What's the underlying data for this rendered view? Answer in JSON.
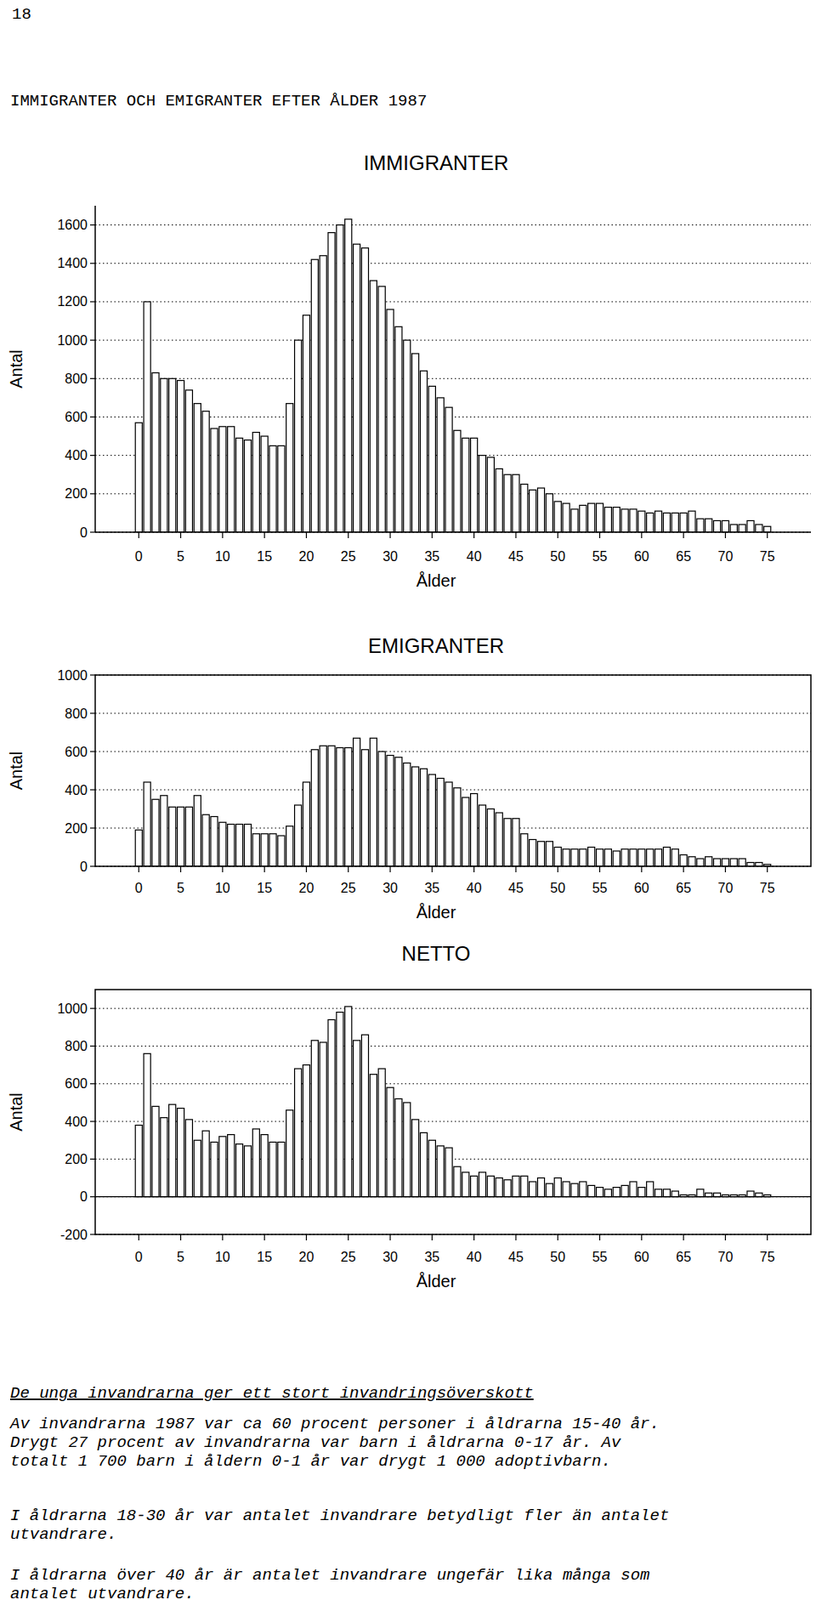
{
  "page_number": "18",
  "heading": "IMMIGRANTER OCH EMIGRANTER EFTER ÅLDER 1987",
  "chart_data": [
    {
      "type": "bar",
      "title": "IMMIGRANTER",
      "x_label": "Ålder",
      "y_label": "Antal",
      "color": "#ffffff",
      "grid": true,
      "x": [
        0,
        1,
        2,
        3,
        4,
        5,
        6,
        7,
        8,
        9,
        10,
        11,
        12,
        13,
        14,
        15,
        16,
        17,
        18,
        19,
        20,
        21,
        22,
        23,
        24,
        25,
        26,
        27,
        28,
        29,
        30,
        31,
        32,
        33,
        34,
        35,
        36,
        37,
        38,
        39,
        40,
        41,
        42,
        43,
        44,
        45,
        46,
        47,
        48,
        49,
        50,
        51,
        52,
        53,
        54,
        55,
        56,
        57,
        58,
        59,
        60,
        61,
        62,
        63,
        64,
        65,
        66,
        67,
        68,
        69,
        70,
        71,
        72,
        73,
        74,
        75
      ],
      "values": [
        570,
        1200,
        830,
        800,
        800,
        790,
        740,
        670,
        630,
        540,
        550,
        550,
        490,
        480,
        520,
        500,
        450,
        450,
        670,
        1000,
        1130,
        1420,
        1440,
        1560,
        1600,
        1630,
        1500,
        1480,
        1310,
        1280,
        1160,
        1070,
        1000,
        930,
        840,
        760,
        700,
        650,
        530,
        490,
        490,
        400,
        390,
        330,
        300,
        300,
        250,
        220,
        230,
        200,
        160,
        150,
        120,
        140,
        150,
        150,
        130,
        130,
        120,
        120,
        110,
        100,
        110,
        100,
        100,
        100,
        110,
        70,
        70,
        60,
        60,
        40,
        40,
        60,
        40,
        30
      ],
      "xlim": [
        -5.2,
        80.2
      ],
      "ylim": [
        0,
        1700
      ],
      "xticks": [
        0,
        5,
        10,
        15,
        20,
        25,
        30,
        35,
        40,
        45,
        50,
        55,
        60,
        65,
        70,
        75
      ],
      "yticks": [
        0,
        200,
        400,
        600,
        800,
        1000,
        1200,
        1400,
        1600
      ]
    },
    {
      "type": "bar",
      "title": "EMIGRANTER",
      "x_label": "Ålder",
      "y_label": "Antal",
      "color": "#ffffff",
      "grid": true,
      "x": [
        0,
        1,
        2,
        3,
        4,
        5,
        6,
        7,
        8,
        9,
        10,
        11,
        12,
        13,
        14,
        15,
        16,
        17,
        18,
        19,
        20,
        21,
        22,
        23,
        24,
        25,
        26,
        27,
        28,
        29,
        30,
        31,
        32,
        33,
        34,
        35,
        36,
        37,
        38,
        39,
        40,
        41,
        42,
        43,
        44,
        45,
        46,
        47,
        48,
        49,
        50,
        51,
        52,
        53,
        54,
        55,
        56,
        57,
        58,
        59,
        60,
        61,
        62,
        63,
        64,
        65,
        66,
        67,
        68,
        69,
        70,
        71,
        72,
        73,
        74,
        75
      ],
      "values": [
        190,
        440,
        350,
        370,
        310,
        310,
        310,
        370,
        270,
        260,
        230,
        220,
        220,
        220,
        170,
        170,
        170,
        160,
        210,
        320,
        440,
        610,
        630,
        630,
        620,
        620,
        670,
        610,
        670,
        600,
        580,
        570,
        540,
        520,
        510,
        480,
        460,
        440,
        410,
        360,
        380,
        320,
        300,
        280,
        250,
        250,
        170,
        140,
        130,
        130,
        100,
        90,
        90,
        90,
        100,
        90,
        90,
        80,
        90,
        90,
        90,
        90,
        90,
        100,
        90,
        60,
        50,
        40,
        50,
        40,
        40,
        40,
        40,
        20,
        20,
        10
      ],
      "xlim": [
        -5.2,
        80.2
      ],
      "ylim": [
        0,
        1000
      ],
      "xticks": [
        0,
        5,
        10,
        15,
        20,
        25,
        30,
        35,
        40,
        45,
        50,
        55,
        60,
        65,
        70,
        75
      ],
      "yticks": [
        0,
        200,
        400,
        600,
        800,
        1000
      ]
    },
    {
      "type": "bar",
      "title": "NETTO",
      "x_label": "Ålder",
      "y_label": "Antal",
      "color": "#ffffff",
      "grid": true,
      "x": [
        0,
        1,
        2,
        3,
        4,
        5,
        6,
        7,
        8,
        9,
        10,
        11,
        12,
        13,
        14,
        15,
        16,
        17,
        18,
        19,
        20,
        21,
        22,
        23,
        24,
        25,
        26,
        27,
        28,
        29,
        30,
        31,
        32,
        33,
        34,
        35,
        36,
        37,
        38,
        39,
        40,
        41,
        42,
        43,
        44,
        45,
        46,
        47,
        48,
        49,
        50,
        51,
        52,
        53,
        54,
        55,
        56,
        57,
        58,
        59,
        60,
        61,
        62,
        63,
        64,
        65,
        66,
        67,
        68,
        69,
        70,
        71,
        72,
        73,
        74,
        75
      ],
      "values": [
        380,
        760,
        480,
        420,
        490,
        470,
        410,
        300,
        350,
        290,
        320,
        330,
        280,
        270,
        360,
        330,
        290,
        290,
        460,
        680,
        700,
        830,
        820,
        940,
        980,
        1010,
        830,
        860,
        650,
        680,
        580,
        520,
        500,
        410,
        340,
        300,
        270,
        260,
        160,
        130,
        110,
        130,
        110,
        100,
        90,
        110,
        110,
        80,
        100,
        70,
        100,
        80,
        70,
        80,
        60,
        50,
        40,
        50,
        60,
        80,
        50,
        80,
        40,
        40,
        30,
        10,
        10,
        40,
        20,
        20,
        10,
        10,
        10,
        30,
        20,
        10
      ],
      "xlim": [
        -5.2,
        80.2
      ],
      "ylim": [
        -200,
        1100
      ],
      "xticks": [
        0,
        5,
        10,
        15,
        20,
        25,
        30,
        35,
        40,
        45,
        50,
        55,
        60,
        65,
        70,
        75
      ],
      "yticks": [
        -200,
        0,
        200,
        400,
        600,
        800,
        1000
      ]
    }
  ],
  "text": {
    "heading": "De unga invandrarna ger ett stort invandringsöverskott",
    "paragraphs": [
      [
        "Av invandrarna 1987 var ca 60 procent personer i åldrarna 15-40 år.",
        "Drygt 27 procent av invandrarna var barn i åldrarna 0-17 år. Av",
        "totalt 1 700 barn i åldern 0-1 år var drygt 1 000 adoptivbarn."
      ],
      [
        "I åldrarna 18-30 år var antalet invandrare betydligt fler än antalet",
        "utvandrare."
      ],
      [
        "I åldrarna över 40 år är antalet invandrare ungefär lika många som",
        "antalet utvandrare."
      ]
    ]
  }
}
